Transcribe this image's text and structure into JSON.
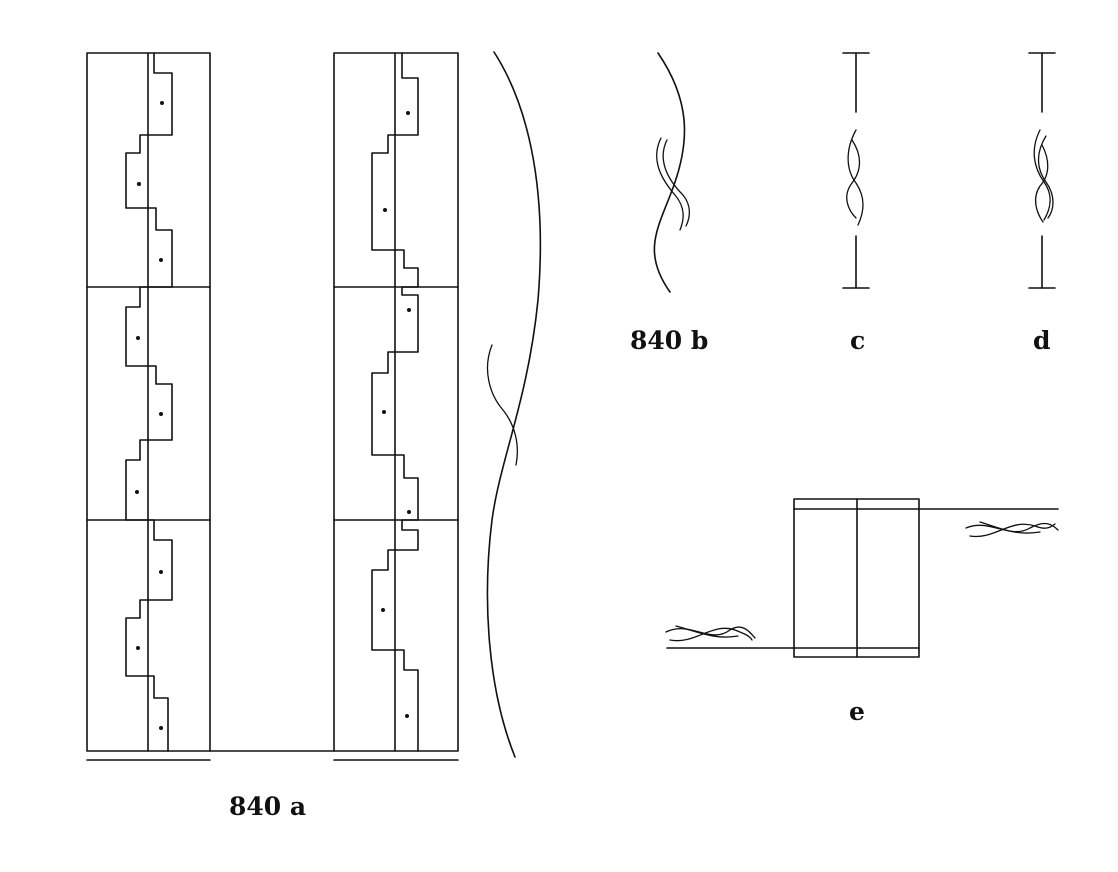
{
  "labels": {
    "fig_a": "840 a",
    "fig_b": "840 b",
    "fig_c": "c",
    "fig_d": "d",
    "fig_e": "e"
  }
}
